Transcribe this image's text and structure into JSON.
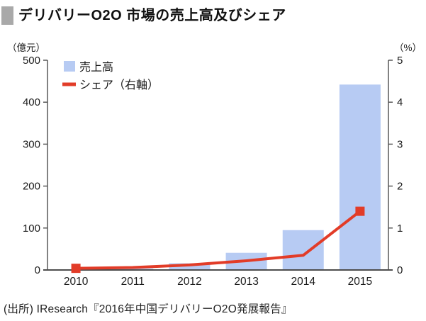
{
  "header": {
    "title": "デリバリーO2O 市場の売上高及びシェア",
    "bullet_color": "#a9a9a9"
  },
  "footer": {
    "source": "(出所) IResearch『2016年中国デリバリーO2O発展報告』"
  },
  "colors": {
    "bar_fill": "#b7cbf3",
    "line_red": "#e23c28",
    "axis": "#4d4d4d",
    "text": "#1a1a1a",
    "title_bullet": "#a9a9a9"
  },
  "chart_data": {
    "type": "bar",
    "subtype": "bar-line-combo",
    "title": "デリバリーO2O 市場の売上高及びシェア",
    "categories": [
      "2010",
      "2011",
      "2012",
      "2013",
      "2014",
      "2015"
    ],
    "series": [
      {
        "name": "売上高",
        "type": "bar",
        "axis": "left",
        "color": "#b7cbf3",
        "values": [
          1.5,
          3.5,
          16,
          41,
          95,
          442
        ]
      },
      {
        "name": "シェア（右軸）",
        "type": "line",
        "axis": "right",
        "color": "#e23c28",
        "values": [
          0.04,
          0.06,
          0.12,
          0.22,
          0.35,
          1.4
        ],
        "markers": "first-and-last-point-square"
      }
    ],
    "left_axis": {
      "unit": "（億元）",
      "min": 0,
      "max": 500,
      "ticks": [
        "500",
        "400",
        "300",
        "200",
        "100",
        "0"
      ]
    },
    "right_axis": {
      "unit": "（%）",
      "min": 0,
      "max": 5,
      "ticks": [
        "5",
        "4",
        "3",
        "2",
        "1",
        "0"
      ]
    },
    "grid": false,
    "legend_position": "top-left-inside"
  }
}
